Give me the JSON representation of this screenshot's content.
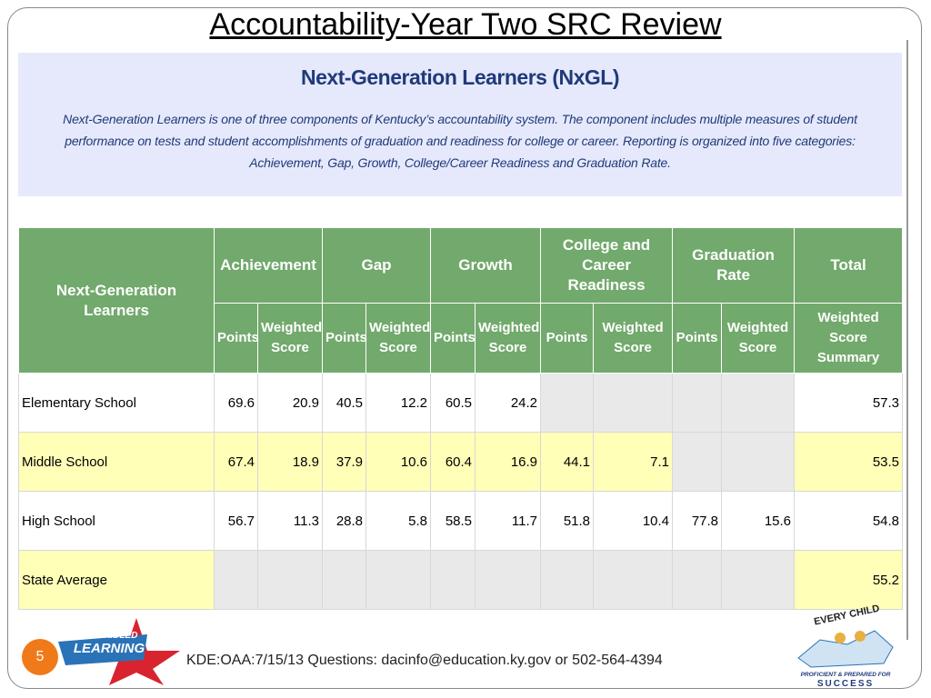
{
  "slide": {
    "title": "Accountability-Year Two SRC Review",
    "page_number": "5",
    "footer": "KDE:OAA:7/15/13  Questions: dacinfo@education.ky.gov or 502-564-4394",
    "logo_left": [
      "UNBRIDLED",
      "LEARNING"
    ],
    "logo_right": [
      "EVERY CHILD",
      "PROFICIENT & PREPARED FOR",
      "SUCCESS"
    ]
  },
  "panel": {
    "heading": "Next-Generation Learners (NxGL)",
    "text": "Next-Generation Learners is one of three components of Kentucky’s accountability system. The component includes multiple measures of student performance on tests and student accomplishments of graduation and readiness for college or career. Reporting is organized into five categories: Achievement, Gap, Growth, College/Career Readiness and Graduation Rate."
  },
  "table": {
    "corner": "Next-Generation Learners",
    "groups": [
      "Achievement",
      "Gap",
      "Growth",
      "College and Career Readiness",
      "Graduation Rate",
      "Total"
    ],
    "subheaders": [
      "Points",
      "Weighted Score",
      "Points",
      "Weighted Score",
      "Points",
      "Weighted Score",
      "Points",
      "Weighted Score",
      "Points",
      "Weighted Score",
      "Weighted Score Summary"
    ],
    "rows": [
      [
        "Elementary School",
        "69.6",
        "20.9",
        "40.5",
        "12.2",
        "60.5",
        "24.2",
        null,
        null,
        null,
        null,
        "57.3"
      ],
      [
        "Middle School",
        "67.4",
        "18.9",
        "37.9",
        "10.6",
        "60.4",
        "16.9",
        "44.1",
        "7.1",
        null,
        null,
        "53.5"
      ],
      [
        "High School",
        "56.7",
        "11.3",
        "28.8",
        "5.8",
        "58.5",
        "11.7",
        "51.8",
        "10.4",
        "77.8",
        "15.6",
        "54.8"
      ],
      [
        "State Average",
        null,
        null,
        null,
        null,
        null,
        null,
        null,
        null,
        null,
        null,
        "55.2"
      ]
    ]
  }
}
